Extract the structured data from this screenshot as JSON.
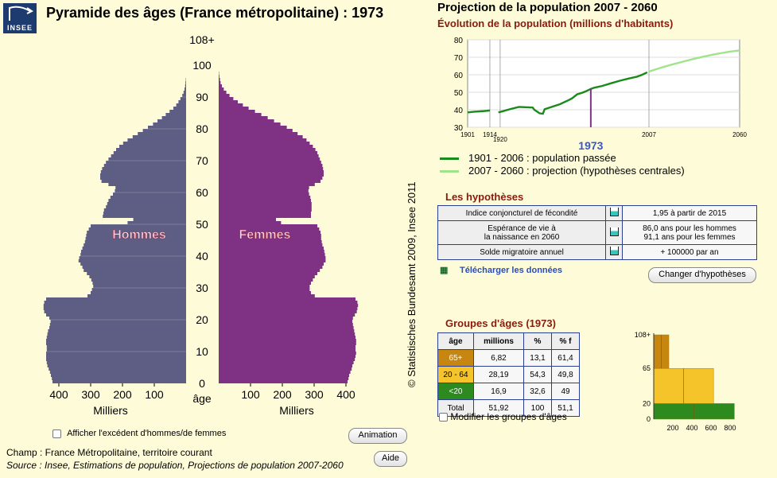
{
  "logo": {
    "text": "INSEE",
    "color": "#1d3b6e"
  },
  "title": "Pyramide des âges (France métropolitaine) : 1973",
  "copyright": "© Statistisches Bundesamt 2009, Insee 2011",
  "colors": {
    "men": "#5e5e85",
    "women": "#7f3284",
    "background": "#fefcd8",
    "past_line": "#1a8a1a",
    "projection_line": "#9fe38a",
    "marker": "#7f3284"
  },
  "chart_data": [
    {
      "type": "bar",
      "orientation": "horizontal-pyramid",
      "title": "Pyramide des âges (France métropolitaine) : 1973",
      "ylabel": "âge",
      "xlabel": "Milliers",
      "y_ticks": [
        "0",
        "10",
        "20",
        "30",
        "40",
        "50",
        "60",
        "70",
        "80",
        "90",
        "100",
        "108+"
      ],
      "x_ticks": [
        "400",
        "300",
        "200",
        "100"
      ],
      "xlim": [
        0,
        450
      ],
      "series_labels": {
        "men": "Hommes",
        "women": "Femmes"
      },
      "age_step": 1,
      "men": [
        420,
        422,
        425,
        428,
        432,
        436,
        438,
        440,
        440,
        440,
        438,
        438,
        440,
        440,
        438,
        436,
        434,
        430,
        428,
        426,
        430,
        440,
        446,
        448,
        448,
        446,
        440,
        310,
        300,
        296,
        292,
        294,
        298,
        304,
        312,
        322,
        326,
        332,
        338,
        336,
        332,
        330,
        326,
        322,
        318,
        316,
        314,
        312,
        306,
        300,
        184,
        166,
        262,
        260,
        258,
        252,
        248,
        244,
        238,
        230,
        224,
        222,
        244,
        266,
        270,
        270,
        268,
        264,
        258,
        252,
        244,
        236,
        228,
        220,
        210,
        198,
        184,
        168,
        152,
        136,
        120,
        104,
        90,
        76,
        64,
        52,
        40,
        31,
        24,
        18,
        12,
        8,
        5,
        3,
        2,
        1,
        0,
        0,
        0,
        0,
        0,
        0,
        0,
        0,
        0,
        0,
        0,
        0,
        0
      ],
      "women": [
        405,
        408,
        410,
        414,
        418,
        420,
        424,
        428,
        430,
        432,
        430,
        430,
        432,
        432,
        430,
        428,
        426,
        424,
        422,
        420,
        422,
        428,
        434,
        436,
        438,
        436,
        430,
        302,
        290,
        286,
        286,
        290,
        296,
        302,
        310,
        318,
        326,
        330,
        336,
        336,
        334,
        332,
        330,
        326,
        324,
        322,
        322,
        320,
        316,
        310,
        196,
        180,
        290,
        290,
        292,
        292,
        292,
        290,
        288,
        284,
        282,
        284,
        302,
        320,
        326,
        330,
        330,
        328,
        326,
        322,
        318,
        314,
        310,
        304,
        296,
        286,
        276,
        264,
        248,
        232,
        214,
        194,
        174,
        154,
        134,
        114,
        94,
        76,
        60,
        46,
        34,
        24,
        16,
        10,
        6,
        4,
        2,
        1,
        0,
        0,
        0,
        0,
        0,
        0,
        0,
        0,
        0,
        0,
        0
      ]
    },
    {
      "type": "line",
      "title": "Évolution de la population (millions d'habitants)",
      "x_ticks": [
        "1901",
        "1914",
        "1920",
        "1973",
        "2007",
        "2060"
      ],
      "ylim": [
        30,
        80
      ],
      "y_ticks": [
        "30",
        "40",
        "50",
        "60",
        "70",
        "80"
      ],
      "highlight_year": 1973,
      "series": [
        {
          "name": "1901 - 2006 : population passée",
          "x": [
            1901,
            1905,
            1910,
            1914,
            1919,
            1921,
            1926,
            1931,
            1936,
            1939,
            1940,
            1943,
            1945,
            1946,
            1950,
            1955,
            1960,
            1962,
            1965,
            1968,
            1970,
            1973,
            1975,
            1980,
            1985,
            1990,
            1995,
            2000,
            2003,
            2006
          ],
          "y": [
            38.5,
            38.9,
            39.2,
            39.6,
            38.5,
            39.0,
            40.4,
            41.6,
            41.4,
            41.3,
            40.0,
            38.0,
            37.7,
            40.3,
            41.6,
            43.2,
            45.5,
            46.5,
            48.8,
            49.7,
            50.5,
            51.9,
            52.6,
            53.7,
            55.2,
            56.6,
            57.8,
            58.9,
            60.0,
            61.4
          ]
        },
        {
          "name": "2007 - 2060 : projection (hypothèses centrales)",
          "x": [
            2007,
            2010,
            2015,
            2020,
            2025,
            2030,
            2035,
            2040,
            2045,
            2050,
            2055,
            2060
          ],
          "y": [
            61.8,
            62.8,
            64.3,
            65.7,
            67.0,
            68.3,
            69.5,
            70.6,
            71.6,
            72.5,
            73.3,
            73.9
          ]
        }
      ]
    },
    {
      "type": "bar",
      "title": "Groupes d'âges (1973)",
      "x_ticks": [
        "200",
        "400",
        "600",
        "800"
      ],
      "y_ticks": [
        "0",
        "20",
        "65",
        "108+"
      ],
      "bands": [
        {
          "label": "<20",
          "from": 0,
          "to": 20,
          "value": 16.9,
          "color": "#2d8a1f"
        },
        {
          "label": "20 - 64",
          "from": 20,
          "to": 65,
          "value": 28.19,
          "color": "#f5c42a"
        },
        {
          "label": "65+",
          "from": 65,
          "to": 108,
          "value": 6.82,
          "color": "#c6860f"
        }
      ]
    }
  ],
  "projection": {
    "title": "Projection de la population 2007 - 2060",
    "subtitle": "Évolution de la population (millions d'habitants)",
    "year_label": "1973",
    "legend": [
      "1901 - 2006 : population passée",
      "2007 - 2060 : projection (hypothèses centrales)"
    ]
  },
  "hypotheses": {
    "title": "Les hypothèses",
    "rows": [
      {
        "label": "Indice conjoncturel de fécondité",
        "value": "1,95 à partir de 2015"
      },
      {
        "label": "Espérance de vie à\nla naissance en 2060",
        "value": "86,0 ans pour les hommes\n91,1 ans pour les femmes"
      },
      {
        "label": "Solde migratoire annuel",
        "value": "+ 100000 par an"
      }
    ],
    "download_label": "Télécharger les données",
    "change_button": "Changer d'hypothèses"
  },
  "groups": {
    "title": "Groupes d'âges (1973)",
    "headers": [
      "âge",
      "millions",
      "%",
      "% f"
    ],
    "rows": [
      {
        "age": "65+",
        "millions": "6,82",
        "pct": "13,1",
        "pctf": "61,4",
        "color": "#c6860f"
      },
      {
        "age": "20 - 64",
        "millions": "28,19",
        "pct": "54,3",
        "pctf": "49,8",
        "color": "#f5c42a"
      },
      {
        "age": "<20",
        "millions": "16,9",
        "pct": "32,6",
        "pctf": "49",
        "color": "#2d8a1f"
      },
      {
        "age": "Total",
        "millions": "51,92",
        "pct": "100",
        "pctf": "51,1",
        "color": ""
      }
    ],
    "modify_label": "Modifier les groupes d'âges"
  },
  "controls": {
    "excess_label": "Afficher l'excédent d'hommes/de femmes",
    "animation_button": "Animation",
    "help_button": "Aide"
  },
  "footer": {
    "champ": "Champ : France Métropolitaine, territoire courant",
    "source": "Source : Insee, Estimations de population, Projections de population 2007-2060"
  }
}
